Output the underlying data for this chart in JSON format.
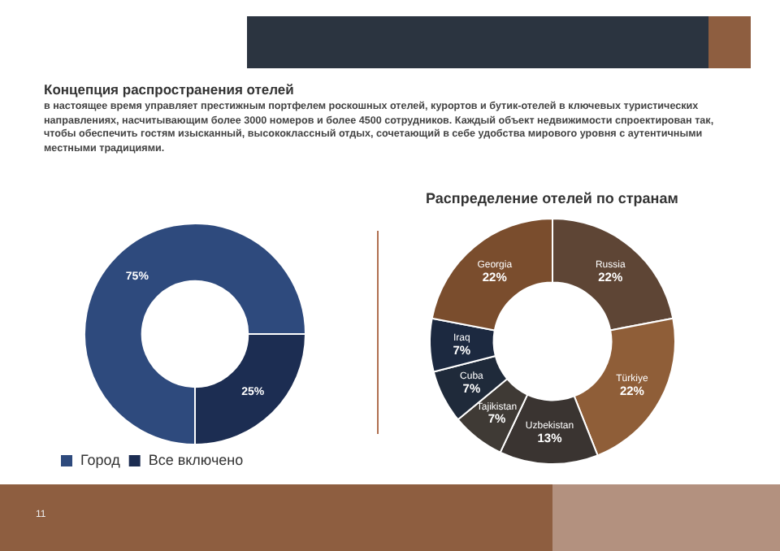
{
  "chart_data": [
    {
      "type": "donut",
      "title": "Концепция распространения отелей",
      "subtitle": "в настоящее время управляет престижным портфелем роскошных отелей, курортов и бутик-отелей в ключевых туристических направлениях, насчитывающим более 3000 номеров и более 4500 сотрудников. Каждый объект недвижимости спроектирован так, чтобы обеспечить гостям изысканный, высококлассный отдых, сочетающий в себе удобства мирового уровня с аутентичными местными традициями.",
      "categories": [
        "Город",
        "Все включено"
      ],
      "values": [
        75,
        25
      ],
      "value_labels": [
        "75%",
        "25%"
      ],
      "colors": [
        "#2e4a7d",
        "#1c2d52"
      ],
      "legend": "bottom left",
      "annotations": [
        "11"
      ]
    },
    {
      "type": "donut",
      "title": "Распределение отелей по странам",
      "categories": [
        "Russia",
        "Türkiye",
        "Uzbekistan",
        "Tajikistan",
        "Cuba",
        "Iraq",
        "Georgia"
      ],
      "values": [
        22,
        22,
        13,
        7,
        7,
        7,
        22
      ],
      "value_labels": [
        "22%",
        "22%",
        "13%",
        "7%",
        "7%",
        "7%",
        "22%"
      ],
      "colors": [
        "#5e4535",
        "#8f5e38",
        "#3a3431",
        "#3f3a35",
        "#1f2a3a",
        "#1c2940",
        "#7a4d2d"
      ],
      "legend": false
    }
  ]
}
